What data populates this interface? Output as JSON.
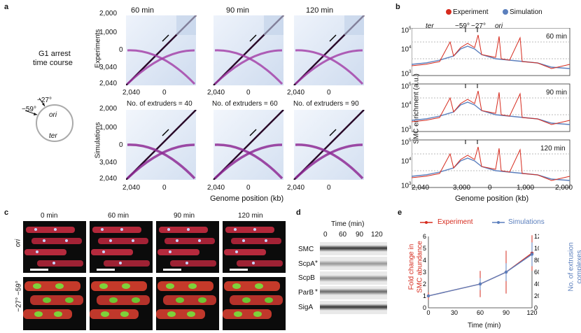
{
  "panel_a": {
    "letter": "a",
    "g1_label_line1": "G1 arrest",
    "g1_label_line2": "time course",
    "angle_27": "−27°",
    "angle_59": "−59°",
    "ori": "ori",
    "ter": "ter",
    "row_experiments": "Experiments",
    "row_simulations": "Simulations",
    "col_titles": [
      "60 min",
      "90 min",
      "120 min"
    ],
    "sim_titles": [
      "No. of extruders = 40",
      "No. of extruders = 60",
      "No. of extruders = 90"
    ],
    "yticks": [
      "2,000",
      "1,000",
      "0",
      "3,040",
      "2,040"
    ],
    "xticks": [
      "2,040",
      "0"
    ],
    "xlabel": "Genome position (kb)"
  },
  "panel_b": {
    "letter": "b",
    "legend_experiment": "Experiment",
    "legend_simulation": "Simulation",
    "colors": {
      "experiment": "#d62b1e",
      "simulation": "#5b7fbd"
    },
    "top_ter": "ter",
    "top_59": "−59°",
    "top_27": "−27°",
    "top_ori": "ori",
    "panel_times": [
      "60 min",
      "90 min",
      "120 min"
    ],
    "ylabel": "SMC enrichment (a.u.)",
    "yticks": [
      "10",
      "10",
      "10"
    ],
    "yexp": [
      "5",
      "4",
      "3"
    ],
    "xticks": [
      "2,040",
      "3,000",
      "0",
      "1,000",
      "2,000"
    ],
    "xlabel": "Genome position (kb)"
  },
  "panel_c": {
    "letter": "c",
    "col_titles": [
      "0 min",
      "60 min",
      "90 min",
      "120 min"
    ],
    "row1_label": "ori",
    "row2_label": "−27° −59°"
  },
  "panel_d": {
    "letter": "d",
    "header": "Time (min)",
    "times": [
      "0",
      "60",
      "90",
      "120"
    ],
    "rows": [
      "SMC",
      "ScpA",
      "ScpB",
      "ParB",
      "SigA"
    ],
    "star": "*"
  },
  "panel_e": {
    "letter": "e",
    "legend_experiment": "Experiment",
    "legend_simulations": "Simulations",
    "ylabel_left_1": "Fold change in",
    "ylabel_left_2": "SMC abundance",
    "ylabel_right_1": "No. of extrusion",
    "ylabel_right_2": "complexes",
    "xlabel": "Time (min)",
    "chart_data": {
      "type": "line",
      "x": [
        0,
        60,
        90,
        120
      ],
      "xticks": [
        "0",
        "30",
        "60",
        "90",
        "120"
      ],
      "yticks_left": [
        "0",
        "1",
        "2",
        "3",
        "4",
        "5",
        "6"
      ],
      "yticks_right": [
        "0",
        "20",
        "40",
        "60",
        "80",
        "100",
        "120"
      ],
      "ylim_left": [
        0,
        6
      ],
      "ylim_right": [
        0,
        120
      ],
      "series": [
        {
          "name": "Experiment",
          "axis": "left",
          "color": "#d62b1e",
          "values": [
            1.0,
            2.0,
            3.0,
            4.6
          ],
          "err": [
            0.3,
            1.1,
            1.8,
            1.5
          ]
        },
        {
          "name": "Simulations",
          "axis": "right",
          "color": "#5b7fbd",
          "values": [
            20,
            40,
            60,
            90
          ],
          "err": [
            2,
            10,
            15,
            20
          ]
        }
      ]
    }
  }
}
